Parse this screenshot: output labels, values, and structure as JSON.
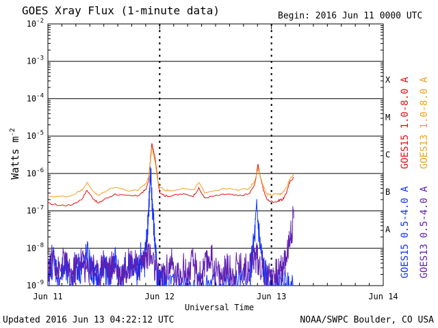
{
  "header": {
    "title": "GOES Xray Flux (1-minute data)",
    "begin": "Begin:  2016 Jun 11 0000 UTC"
  },
  "footer": {
    "updated": "Updated 2016 Jun 13 04:22:12 UTC",
    "credit": "NOAA/SWPC Boulder, CO USA"
  },
  "colors": {
    "goes15_long": "#e01010",
    "goes13_long": "#f0a020",
    "goes15_short": "#1030ff",
    "goes13_short": "#6020b0",
    "grid": "#000000"
  },
  "chart_data": {
    "type": "line",
    "title": "GOES Xray Flux (1-minute data)",
    "xlabel": "Universal Time",
    "ylabel": "Watts m",
    "ylabel_sup": "-2",
    "yscale": "log",
    "ylim_exp": [
      -9,
      -2
    ],
    "xlim_days": [
      0,
      3
    ],
    "x_ticks": [
      "Jun 11",
      "Jun 12",
      "Jun 13",
      "Jun 14"
    ],
    "y_ticks": [
      "-9",
      "-8",
      "-7",
      "-6",
      "-5",
      "-4",
      "-3",
      "-2"
    ],
    "flare_classes": [
      "A",
      "B",
      "C",
      "M",
      "X"
    ],
    "legend": [
      "GOES15 1.0-8.0 A",
      "GOES13 1.0-8.0 A",
      "GOES15 0.5-4.0 A",
      "GOES13 0.5-4.0 A"
    ],
    "series": [
      {
        "name": "GOES15 1.0-8.0 A",
        "color": "#e01010",
        "x": [
          0,
          0.1,
          0.2,
          0.3,
          0.35,
          0.4,
          0.45,
          0.5,
          0.6,
          0.7,
          0.8,
          0.85,
          0.88,
          0.9,
          0.93,
          0.96,
          0.98,
          1.0,
          1.05,
          1.1,
          1.2,
          1.3,
          1.35,
          1.4,
          1.5,
          1.6,
          1.7,
          1.8,
          1.85,
          1.88,
          1.9,
          1.93,
          1.96,
          2.0,
          2.05,
          2.08,
          2.1,
          2.13,
          2.15,
          2.17,
          2.2
        ],
        "exp": [
          -6.8,
          -6.85,
          -6.85,
          -6.7,
          -6.45,
          -6.65,
          -6.8,
          -6.7,
          -6.55,
          -6.6,
          -6.6,
          -6.5,
          -6.4,
          -6.2,
          -5.2,
          -5.6,
          -6.1,
          -6.5,
          -6.6,
          -6.6,
          -6.55,
          -6.6,
          -6.4,
          -6.65,
          -6.6,
          -6.55,
          -6.6,
          -6.55,
          -6.3,
          -5.75,
          -6.1,
          -6.45,
          -6.7,
          -6.75,
          -6.75,
          -6.7,
          -6.7,
          -6.55,
          -6.35,
          -6.2,
          -6.1
        ]
      },
      {
        "name": "GOES13 1.0-8.0 A",
        "color": "#f0a020",
        "x": [
          0,
          0.1,
          0.2,
          0.3,
          0.35,
          0.4,
          0.45,
          0.5,
          0.6,
          0.7,
          0.8,
          0.85,
          0.88,
          0.9,
          0.93,
          0.96,
          0.98,
          1.0,
          1.05,
          1.1,
          1.2,
          1.3,
          1.35,
          1.4,
          1.5,
          1.6,
          1.7,
          1.8,
          1.85,
          1.88,
          1.9,
          1.93,
          1.96,
          2.0,
          2.05,
          2.08,
          2.1,
          2.13,
          2.15,
          2.17,
          2.2
        ],
        "exp": [
          -6.6,
          -6.62,
          -6.6,
          -6.45,
          -6.25,
          -6.45,
          -6.6,
          -6.5,
          -6.35,
          -6.45,
          -6.45,
          -6.35,
          -6.25,
          -6.1,
          -5.3,
          -5.7,
          -6.15,
          -6.35,
          -6.45,
          -6.45,
          -6.4,
          -6.45,
          -6.25,
          -6.5,
          -6.45,
          -6.4,
          -6.45,
          -6.4,
          -6.2,
          -5.85,
          -6.1,
          -6.35,
          -6.55,
          -6.58,
          -6.55,
          -6.55,
          -6.5,
          -6.4,
          -6.25,
          -6.1,
          -6.05
        ]
      },
      {
        "name": "GOES15 0.5-4.0 A",
        "color": "#1030ff",
        "x": [
          0,
          0.05,
          0.1,
          0.15,
          0.2,
          0.25,
          0.3,
          0.35,
          0.4,
          0.45,
          0.5,
          0.55,
          0.6,
          0.65,
          0.7,
          0.75,
          0.8,
          0.83,
          0.86,
          0.88,
          0.9,
          0.92,
          0.94,
          0.96,
          0.98,
          1.0,
          1.02,
          1.05,
          1.1,
          1.2,
          1.3,
          1.4,
          1.5,
          1.6,
          1.7,
          1.8,
          1.84,
          1.87,
          1.9,
          1.93,
          1.96,
          2.0,
          2.05,
          2.1,
          2.15,
          2.2
        ],
        "exp": [
          -8.7,
          -8.3,
          -8.8,
          -8.5,
          -8.9,
          -8.4,
          -8.6,
          -8.2,
          -8.7,
          -8.9,
          -8.5,
          -8.8,
          -8.3,
          -8.9,
          -8.6,
          -8.4,
          -8.8,
          -8.2,
          -8.5,
          -7.9,
          -7.0,
          -6.1,
          -7.1,
          -8.0,
          -8.8,
          -9.0,
          -9.0,
          -9.0,
          -9.0,
          -9.0,
          -9.0,
          -9.0,
          -9.0,
          -9.0,
          -9.0,
          -8.8,
          -8.0,
          -7.0,
          -8.0,
          -8.6,
          -8.9,
          -9.0,
          -9.0,
          -9.0,
          -9.0,
          -9.0
        ]
      },
      {
        "name": "GOES13 0.5-4.0 A",
        "color": "#6020b0",
        "x": [
          0,
          0.05,
          0.1,
          0.15,
          0.2,
          0.25,
          0.3,
          0.35,
          0.4,
          0.45,
          0.5,
          0.55,
          0.6,
          0.65,
          0.7,
          0.75,
          0.8,
          0.85,
          0.9,
          0.95,
          1.0,
          1.05,
          1.1,
          1.15,
          1.2,
          1.25,
          1.3,
          1.35,
          1.4,
          1.45,
          1.5,
          1.55,
          1.6,
          1.65,
          1.7,
          1.75,
          1.8,
          1.85,
          1.9,
          1.95,
          2.0,
          2.05,
          2.1,
          2.15,
          2.17,
          2.2
        ],
        "exp": [
          -8.6,
          -8.2,
          -8.7,
          -8.3,
          -8.8,
          -8.5,
          -8.3,
          -8.6,
          -8.4,
          -8.8,
          -8.3,
          -8.6,
          -8.4,
          -8.7,
          -8.5,
          -8.3,
          -8.6,
          -8.3,
          -8.1,
          -8.5,
          -8.9,
          -8.6,
          -8.4,
          -8.8,
          -8.5,
          -8.7,
          -8.4,
          -8.8,
          -8.6,
          -8.2,
          -8.6,
          -8.8,
          -8.5,
          -8.7,
          -8.4,
          -8.6,
          -8.5,
          -8.2,
          -8.4,
          -8.8,
          -8.6,
          -8.7,
          -8.5,
          -8.0,
          -7.6,
          -7.2
        ]
      }
    ]
  }
}
